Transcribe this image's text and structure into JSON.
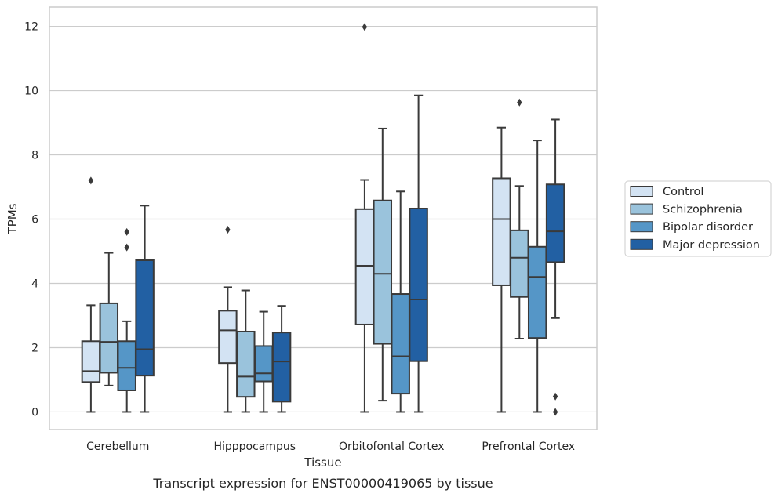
{
  "caption": "Transcript expression for ENST00000419065 by tissue",
  "chart_data": {
    "type": "box",
    "title": "",
    "xlabel": "Tissue",
    "ylabel": "TPMs",
    "ylim": [
      -0.55,
      12.6
    ],
    "yticks": [
      0,
      2,
      4,
      6,
      8,
      10,
      12
    ],
    "grid": "horizontal",
    "legend_position": "right",
    "categories": [
      "Cerebellum",
      "Hipppocampus",
      "Orbitofontal Cortex",
      "Prefrontal Cortex"
    ],
    "series": [
      {
        "name": "Control",
        "color": "#d3e3f3",
        "boxes": [
          {
            "whislo": 0,
            "q1": 0.93,
            "med": 1.27,
            "q3": 2.2,
            "whishi": 3.32,
            "fliers": [
              7.2
            ]
          },
          {
            "whislo": 0,
            "q1": 1.52,
            "med": 2.54,
            "q3": 3.15,
            "whishi": 3.88,
            "fliers": [
              5.67
            ]
          },
          {
            "whislo": 0,
            "q1": 2.72,
            "med": 4.55,
            "q3": 6.31,
            "whishi": 7.22,
            "fliers": [
              11.98
            ]
          },
          {
            "whislo": 0,
            "q1": 3.94,
            "med": 6.0,
            "q3": 7.27,
            "whishi": 8.85,
            "fliers": []
          }
        ]
      },
      {
        "name": "Schizophrenia",
        "color": "#9ac3dc",
        "boxes": [
          {
            "whislo": 0.82,
            "q1": 1.22,
            "med": 2.18,
            "q3": 3.38,
            "whishi": 4.95,
            "fliers": []
          },
          {
            "whislo": 0,
            "q1": 0.47,
            "med": 1.1,
            "q3": 2.5,
            "whishi": 3.78,
            "fliers": []
          },
          {
            "whislo": 0.35,
            "q1": 2.12,
            "med": 4.3,
            "q3": 6.58,
            "whishi": 8.82,
            "fliers": []
          },
          {
            "whislo": 2.28,
            "q1": 3.58,
            "med": 4.8,
            "q3": 5.65,
            "whishi": 7.03,
            "fliers": [
              9.63
            ]
          }
        ]
      },
      {
        "name": "Bipolar disorder",
        "color": "#5596c7",
        "boxes": [
          {
            "whislo": 0,
            "q1": 0.67,
            "med": 1.37,
            "q3": 2.2,
            "whishi": 2.82,
            "fliers": [
              5.12,
              5.6
            ]
          },
          {
            "whislo": 0,
            "q1": 0.95,
            "med": 1.2,
            "q3": 2.05,
            "whishi": 3.12,
            "fliers": []
          },
          {
            "whislo": 0,
            "q1": 0.57,
            "med": 1.73,
            "q3": 3.67,
            "whishi": 6.86,
            "fliers": []
          },
          {
            "whislo": 0,
            "q1": 2.3,
            "med": 4.2,
            "q3": 5.14,
            "whishi": 8.45,
            "fliers": []
          }
        ]
      },
      {
        "name": "Major depression",
        "color": "#2260a3",
        "boxes": [
          {
            "whislo": 0,
            "q1": 1.13,
            "med": 1.95,
            "q3": 4.72,
            "whishi": 6.42,
            "fliers": []
          },
          {
            "whislo": 0,
            "q1": 0.32,
            "med": 1.57,
            "q3": 2.47,
            "whishi": 3.3,
            "fliers": []
          },
          {
            "whislo": 0,
            "q1": 1.58,
            "med": 3.5,
            "q3": 6.33,
            "whishi": 9.85,
            "fliers": []
          },
          {
            "whislo": 2.92,
            "q1": 4.66,
            "med": 5.62,
            "q3": 7.08,
            "whishi": 9.1,
            "fliers": [
              0.48,
              0.0
            ]
          }
        ]
      }
    ]
  }
}
